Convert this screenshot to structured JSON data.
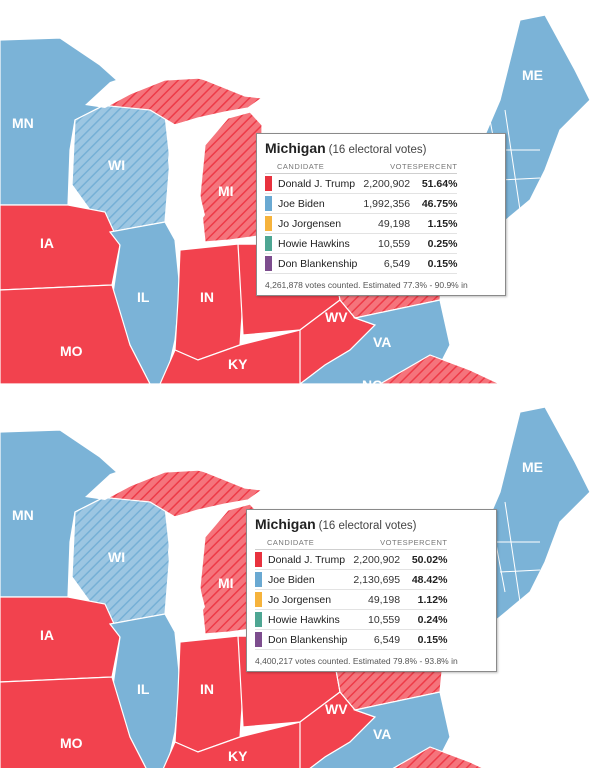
{
  "colors": {
    "republican": "#f2424e",
    "democrat": "#7bb3d7",
    "background": "#ffffff"
  },
  "state_labels": {
    "MN": "MN",
    "WI": "WI",
    "MI": "MI",
    "IA": "IA",
    "IL": "IL",
    "IN": "IN",
    "MO": "MO",
    "KY": "KY",
    "WV": "WV",
    "VA": "VA",
    "ME": "ME",
    "NC": "NC"
  },
  "panels": [
    {
      "tooltip": {
        "state": "Michigan",
        "electoral": "(16 electoral votes)",
        "headers": {
          "candidate": "CANDIDATE",
          "votes": "VOTES",
          "percent": "PERCENT"
        },
        "rows": [
          {
            "name": "Donald J. Trump",
            "votes": "2,200,902",
            "percent": "51.64%",
            "color": "#e8323e"
          },
          {
            "name": "Joe Biden",
            "votes": "1,992,356",
            "percent": "46.75%",
            "color": "#6aa9d2"
          },
          {
            "name": "Jo Jorgensen",
            "votes": "49,198",
            "percent": "1.15%",
            "color": "#f6b33c"
          },
          {
            "name": "Howie Hawkins",
            "votes": "10,559",
            "percent": "0.25%",
            "color": "#4ea693"
          },
          {
            "name": "Don Blankenship",
            "votes": "6,549",
            "percent": "0.15%",
            "color": "#7d4d8e"
          }
        ],
        "footer": "4,261,878 votes counted. Estimated 77.3% - 90.9% in"
      }
    },
    {
      "tooltip": {
        "state": "Michigan",
        "electoral": "(16 electoral votes)",
        "headers": {
          "candidate": "CANDIDATE",
          "votes": "VOTES",
          "percent": "PERCENT"
        },
        "rows": [
          {
            "name": "Donald J. Trump",
            "votes": "2,200,902",
            "percent": "50.02%",
            "color": "#e8323e"
          },
          {
            "name": "Joe Biden",
            "votes": "2,130,695",
            "percent": "48.42%",
            "color": "#6aa9d2"
          },
          {
            "name": "Jo Jorgensen",
            "votes": "49,198",
            "percent": "1.12%",
            "color": "#f6b33c"
          },
          {
            "name": "Howie Hawkins",
            "votes": "10,559",
            "percent": "0.24%",
            "color": "#4ea693"
          },
          {
            "name": "Don Blankenship",
            "votes": "6,549",
            "percent": "0.15%",
            "color": "#7d4d8e"
          }
        ],
        "footer": "4,400,217 votes counted. Estimated 79.8% - 93.8% in"
      }
    }
  ]
}
